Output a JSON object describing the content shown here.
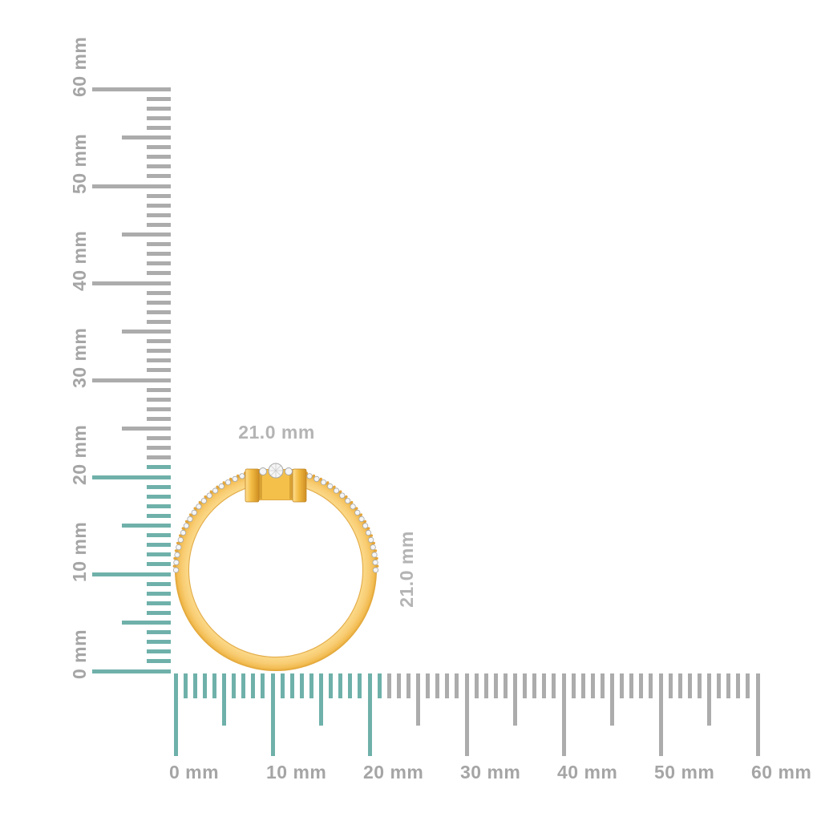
{
  "canvas": {
    "background": "#FFFFFF"
  },
  "rulers": {
    "unit": "mm",
    "max": 60,
    "minor_step": 1,
    "mid_step": 5,
    "major_step": 10,
    "highlight_until": 21,
    "labels": [
      "0 mm",
      "10 mm",
      "20 mm",
      "30 mm",
      "40 mm",
      "50 mm",
      "60 mm"
    ],
    "colors": {
      "highlight": "#6FB1AA",
      "tick": "#ACACAC",
      "label": "#A5A5A5"
    }
  },
  "measurement": {
    "width_label": "21.0 mm",
    "height_label": "21.0 mm",
    "label_color": "#B4B4B4"
  },
  "ring": {
    "description": "gold-diamond-ring-side-view",
    "outer_diameter_mm": 21.0,
    "colors": {
      "gold": "#F8CC72",
      "gold_edge": "#DFA232",
      "gold_inner_edge": "#E2AB47",
      "gold_deep": "#BE831D",
      "gold_highlight": "#FFDE8F",
      "prong_mid": "#F2BA42",
      "prong_dark": "#CE8F22",
      "bump": "#E3A53B",
      "diamond": "#F5F5F5",
      "diamond_edge": "#A6A6A6",
      "facet": "#CDCDCD"
    }
  }
}
